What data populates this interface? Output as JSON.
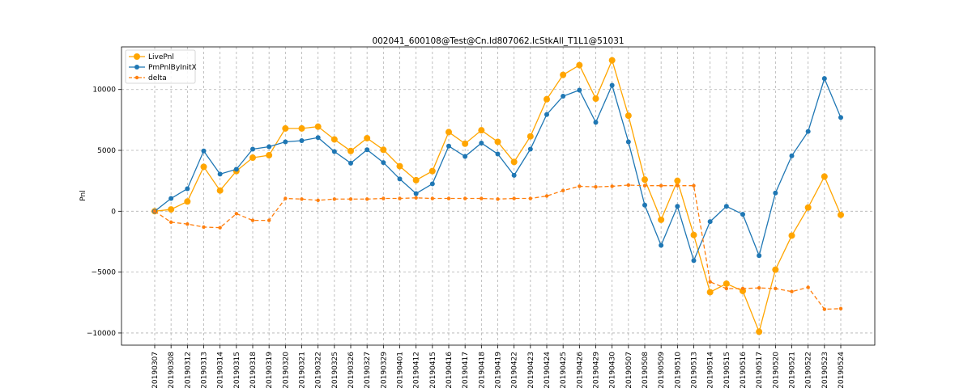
{
  "chart_data": {
    "type": "line",
    "title": "002041_600108@Test@Cn.Id807062.IcStkAll_T1L1@51031",
    "xlabel": "",
    "ylabel": "Pnl",
    "ylim": [
      -11000,
      13500
    ],
    "yticks": [
      -10000,
      -5000,
      0,
      5000,
      10000
    ],
    "grid": true,
    "legend_position": "top-left",
    "categories": [
      "20190307",
      "20190308",
      "20190312",
      "20190313",
      "20190314",
      "20190315",
      "20190318",
      "20190319",
      "20190320",
      "20190321",
      "20190322",
      "20190325",
      "20190326",
      "20190327",
      "20190329",
      "20190401",
      "20190412",
      "20190415",
      "20190416",
      "20190417",
      "20190418",
      "20190419",
      "20190422",
      "20190423",
      "20190424",
      "20190425",
      "20190426",
      "20190429",
      "20190430",
      "20190507",
      "20190508",
      "20190509",
      "20190510",
      "20190513",
      "20190514",
      "20190515",
      "20190516",
      "20190517",
      "20190520",
      "20190521",
      "20190522",
      "20190523",
      "20190524"
    ],
    "series": [
      {
        "name": "LivePnl",
        "color": "#ffa500",
        "dash": false,
        "marker_r": 4,
        "values": [
          0,
          150,
          800,
          3650,
          1700,
          3300,
          4400,
          4600,
          6800,
          6800,
          6950,
          5900,
          4950,
          6000,
          5050,
          3700,
          2550,
          3300,
          6500,
          5550,
          6650,
          5700,
          4050,
          6150,
          9200,
          11200,
          12000,
          9250,
          12400,
          7850,
          2600,
          -700,
          2500,
          -1950,
          -6650,
          -5950,
          -6550,
          -9900,
          -4800,
          -2000,
          300,
          2850,
          -300
        ]
      },
      {
        "name": "PmPnlByInitX",
        "color": "#1f77b4",
        "dash": false,
        "marker_r": 3,
        "values": [
          0,
          1050,
          1850,
          4950,
          3050,
          3450,
          5100,
          5300,
          5700,
          5800,
          6050,
          4900,
          3950,
          5050,
          4000,
          2650,
          1450,
          2250,
          5350,
          4500,
          5600,
          4700,
          2950,
          5100,
          7950,
          9450,
          9950,
          7300,
          10350,
          5700,
          500,
          -2800,
          400,
          -4050,
          -850,
          400,
          -250,
          -3650,
          1500,
          4550,
          6550,
          10900,
          7700
        ]
      },
      {
        "name": "delta",
        "color": "#ff7f0e",
        "dash": true,
        "marker_r": 2.2,
        "values": [
          0,
          -900,
          -1050,
          -1300,
          -1350,
          -200,
          -750,
          -750,
          1050,
          1000,
          900,
          1000,
          1000,
          1000,
          1050,
          1050,
          1100,
          1050,
          1050,
          1050,
          1050,
          1000,
          1050,
          1050,
          1250,
          1700,
          2050,
          2000,
          2050,
          2150,
          2100,
          2100,
          2100,
          2100,
          -5800,
          -6350,
          -6350,
          -6300,
          -6350,
          -6600,
          -6250,
          -8050,
          -8000
        ]
      }
    ]
  }
}
